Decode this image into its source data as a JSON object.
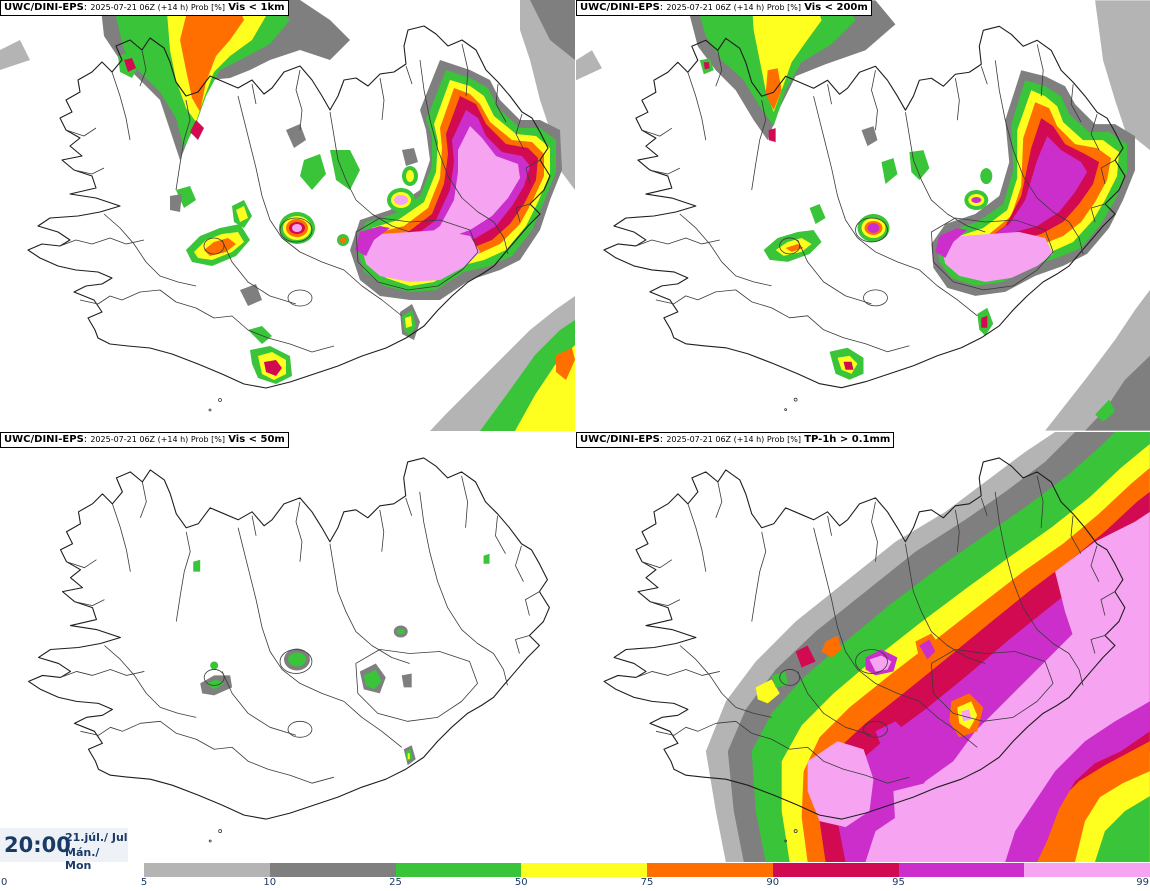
{
  "panels": [
    {
      "model": "UWC/DINI-EPS",
      "sep": ":",
      "run": "2025-07-21 06Z (+14 h) Prob [%]",
      "variable": "Vis < 1km"
    },
    {
      "model": "UWC/DINI-EPS",
      "sep": ":",
      "run": "2025-07-21 06Z (+14 h) Prob [%]",
      "variable": "Vis < 200m"
    },
    {
      "model": "UWC/DINI-EPS",
      "sep": ":",
      "run": "2025-07-21 06Z (+14 h) Prob [%]",
      "variable": "Vis < 50m"
    },
    {
      "model": "UWC/DINI-EPS",
      "sep": ":",
      "run": "2025-07-21 06Z (+14 h) Prob [%]",
      "variable": "TP-1h > 0.1mm"
    }
  ],
  "valid_time": {
    "time": "20:00",
    "date": "21.júl./ Jul",
    "weekday": "Mán./ Mon"
  },
  "colorbar": {
    "segments": [
      {
        "color": "#b4b4b4"
      },
      {
        "color": "#7f7f7f"
      },
      {
        "color": "#39c439"
      },
      {
        "color": "#ffff1f"
      },
      {
        "color": "#ff6f00"
      },
      {
        "color": "#d10a52"
      },
      {
        "color": "#cc2ecc"
      },
      {
        "color": "#f6a4f2"
      }
    ],
    "ticks": [
      "0",
      "5",
      "10",
      "25",
      "50",
      "75",
      "90",
      "95",
      "99"
    ]
  },
  "legend_colors": {
    "grey_light": "#b4b4b4",
    "grey_dark": "#7f7f7f",
    "green": "#39c439",
    "yellow": "#ffff1f",
    "orange": "#ff6f00",
    "red": "#d10a52",
    "magenta": "#cc2ecc",
    "pink": "#f6a4f2"
  }
}
